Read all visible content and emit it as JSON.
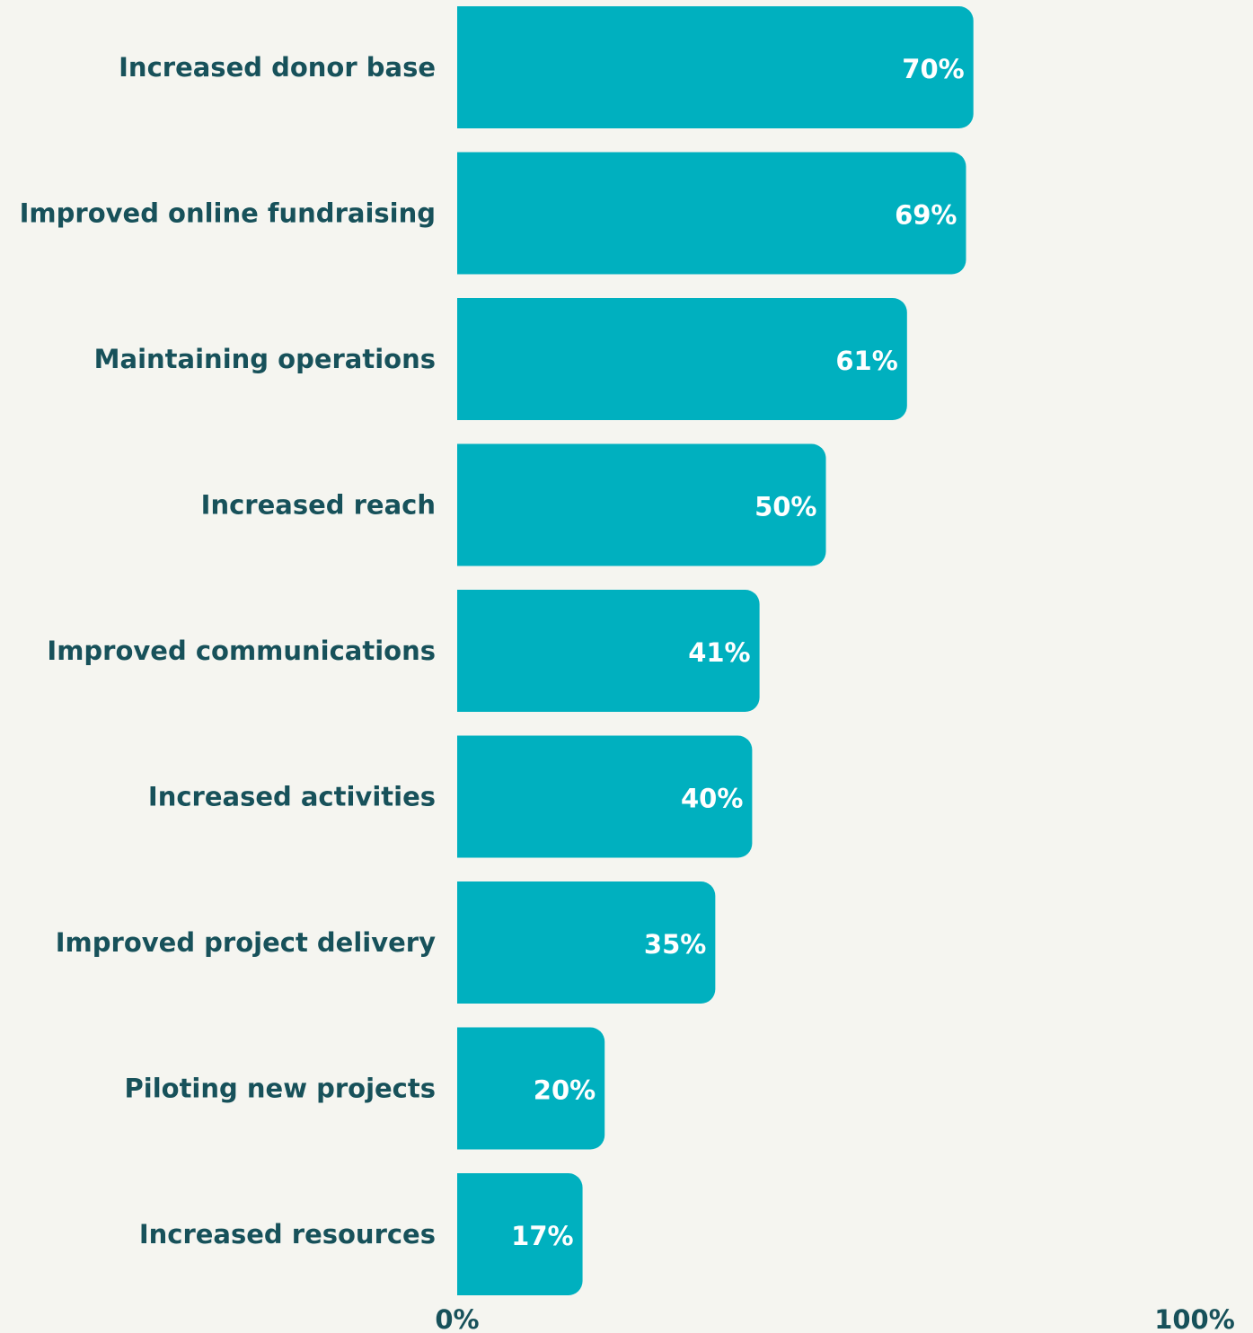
{
  "chart_data": {
    "type": "bar",
    "orientation": "horizontal",
    "categories": [
      "Increased donor base",
      "Improved online fundraising",
      "Maintaining operations",
      "Increased reach",
      "Improved communications",
      "Increased activities",
      "Improved project delivery",
      "Piloting new projects",
      "Increased resources"
    ],
    "values": [
      70,
      69,
      61,
      50,
      41,
      40,
      35,
      20,
      17
    ],
    "value_labels": [
      "70%",
      "69%",
      "61%",
      "50%",
      "41%",
      "40%",
      "35%",
      "20%",
      "17%"
    ],
    "xlim": [
      0,
      100
    ],
    "x_tick_labels": [
      "0%",
      "100%"
    ],
    "grid": false,
    "colors": {
      "bar": "#00b0bf",
      "label": "#17515a",
      "value_text": "#ffffff",
      "background": "#f5f5f0"
    }
  }
}
